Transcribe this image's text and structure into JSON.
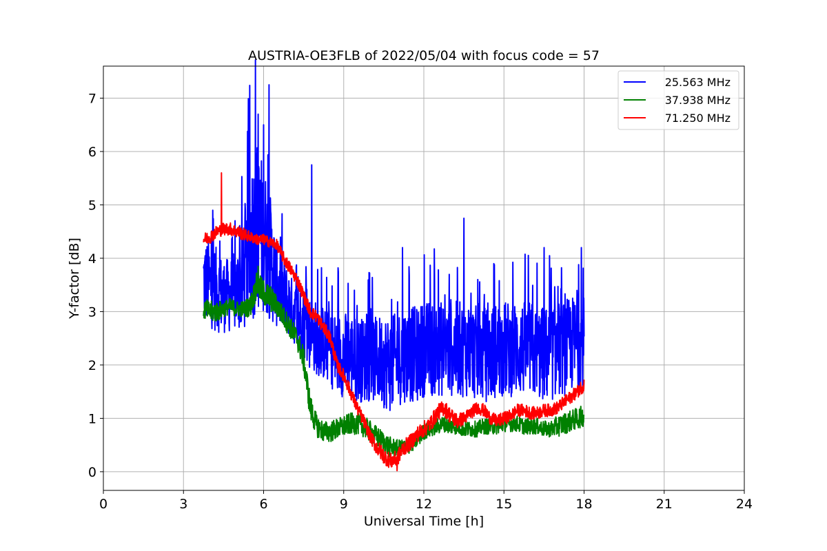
{
  "chart_data": {
    "type": "line",
    "title": "AUSTRIA-OE3FLB of 2022/05/04 with focus code = 57",
    "xlabel": "Universal Time [h]",
    "ylabel": "Y-factor [dB]",
    "xlim": [
      0,
      24
    ],
    "ylim": [
      -0.35,
      7.6
    ],
    "xticks": [
      0,
      3,
      6,
      9,
      12,
      15,
      18,
      21,
      24
    ],
    "yticks": [
      0,
      1,
      2,
      3,
      4,
      5,
      6,
      7
    ],
    "grid": true,
    "legend_position": "top-right",
    "series": [
      {
        "name": "25.563 MHz",
        "color": "#0000ff",
        "x": [
          3.75,
          4.0,
          4.25,
          4.5,
          4.75,
          5.0,
          5.25,
          5.5,
          5.75,
          6.0,
          6.25,
          6.5,
          6.75,
          7.0,
          7.25,
          7.5,
          7.75,
          8.0,
          8.25,
          8.5,
          8.75,
          9.0,
          9.25,
          9.5,
          9.75,
          10.0,
          10.25,
          10.5,
          10.75,
          11.0,
          11.25,
          11.5,
          11.75,
          12.0,
          12.25,
          12.5,
          12.75,
          13.0,
          13.25,
          13.5,
          13.75,
          14.0,
          14.25,
          14.5,
          14.75,
          15.0,
          15.25,
          15.5,
          15.75,
          16.0,
          16.25,
          16.5,
          16.75,
          17.0,
          17.25,
          17.5,
          17.75,
          18.0
        ],
        "mean": [
          3.6,
          3.5,
          3.4,
          3.3,
          3.3,
          3.4,
          3.6,
          4.3,
          4.6,
          4.4,
          4.0,
          3.5,
          3.3,
          3.1,
          2.9,
          2.8,
          2.6,
          2.5,
          2.4,
          2.3,
          2.2,
          2.2,
          2.2,
          2.1,
          2.1,
          2.1,
          2.1,
          2.1,
          2.0,
          2.1,
          2.2,
          2.2,
          2.2,
          2.3,
          2.3,
          2.3,
          2.3,
          2.3,
          2.3,
          2.3,
          2.3,
          2.2,
          2.2,
          2.2,
          2.3,
          2.3,
          2.3,
          2.3,
          2.3,
          2.3,
          2.2,
          2.2,
          2.2,
          2.3,
          2.3,
          2.4,
          2.4,
          2.4
        ],
        "amplitude": [
          0.8,
          0.8,
          0.8,
          0.7,
          0.7,
          0.8,
          1.0,
          1.6,
          1.6,
          1.4,
          1.2,
          0.8,
          0.7,
          0.6,
          0.6,
          0.7,
          0.7,
          0.7,
          0.7,
          0.7,
          0.8,
          0.8,
          0.8,
          0.8,
          0.8,
          0.8,
          0.8,
          0.9,
          0.9,
          0.9,
          0.9,
          0.9,
          0.9,
          0.9,
          0.9,
          0.9,
          0.9,
          0.9,
          0.9,
          0.9,
          0.9,
          0.9,
          0.9,
          0.9,
          0.9,
          0.9,
          0.9,
          0.9,
          0.9,
          0.9,
          0.9,
          0.9,
          0.9,
          0.9,
          0.9,
          0.9,
          0.9,
          0.9
        ],
        "peaks": [
          [
            4.1,
            4.9
          ],
          [
            5.8,
            6.7
          ],
          [
            6.0,
            6.5
          ],
          [
            6.2,
            7.25
          ],
          [
            7.8,
            5.75
          ],
          [
            11.2,
            4.2
          ],
          [
            13.5,
            4.75
          ],
          [
            16.5,
            4.2
          ],
          [
            17.9,
            4.2
          ]
        ]
      },
      {
        "name": "37.938 MHz",
        "color": "#008000",
        "x": [
          3.75,
          4.0,
          4.25,
          4.5,
          4.75,
          5.0,
          5.25,
          5.5,
          5.75,
          6.0,
          6.25,
          6.5,
          6.75,
          7.0,
          7.25,
          7.5,
          7.75,
          8.0,
          8.25,
          8.5,
          8.75,
          9.0,
          9.25,
          9.5,
          9.75,
          10.0,
          10.25,
          10.5,
          10.75,
          11.0,
          11.25,
          11.5,
          11.75,
          12.0,
          12.25,
          12.5,
          12.75,
          13.0,
          13.25,
          13.5,
          13.75,
          14.0,
          14.25,
          14.5,
          14.75,
          15.0,
          15.25,
          15.5,
          15.75,
          16.0,
          16.25,
          16.5,
          16.75,
          17.0,
          17.25,
          17.5,
          17.75,
          18.0
        ],
        "mean": [
          3.05,
          3.0,
          3.0,
          3.05,
          3.1,
          3.05,
          3.05,
          3.1,
          3.5,
          3.35,
          3.25,
          3.1,
          2.9,
          2.7,
          2.5,
          2.1,
          1.2,
          0.85,
          0.75,
          0.75,
          0.8,
          0.85,
          0.9,
          0.9,
          0.85,
          0.75,
          0.65,
          0.55,
          0.45,
          0.45,
          0.45,
          0.5,
          0.6,
          0.75,
          0.8,
          0.85,
          0.9,
          0.85,
          0.85,
          0.8,
          0.8,
          0.8,
          0.85,
          0.85,
          0.85,
          0.9,
          0.9,
          0.9,
          0.85,
          0.85,
          0.85,
          0.8,
          0.8,
          0.85,
          0.9,
          0.95,
          1.0,
          1.05
        ],
        "amplitude": [
          0.2,
          0.2,
          0.2,
          0.15,
          0.15,
          0.15,
          0.15,
          0.2,
          0.25,
          0.25,
          0.25,
          0.2,
          0.2,
          0.2,
          0.2,
          0.25,
          0.25,
          0.2,
          0.2,
          0.2,
          0.2,
          0.2,
          0.2,
          0.2,
          0.2,
          0.2,
          0.2,
          0.2,
          0.2,
          0.15,
          0.15,
          0.15,
          0.15,
          0.15,
          0.15,
          0.15,
          0.15,
          0.15,
          0.15,
          0.15,
          0.15,
          0.15,
          0.15,
          0.15,
          0.15,
          0.15,
          0.15,
          0.15,
          0.15,
          0.15,
          0.15,
          0.15,
          0.15,
          0.2,
          0.2,
          0.2,
          0.2,
          0.2
        ],
        "peaks": [
          [
            5.8,
            3.85
          ]
        ]
      },
      {
        "name": "71.250 MHz",
        "color": "#ff0000",
        "x": [
          3.75,
          4.0,
          4.25,
          4.5,
          4.75,
          5.0,
          5.25,
          5.5,
          5.75,
          6.0,
          6.25,
          6.5,
          6.75,
          7.0,
          7.25,
          7.5,
          7.75,
          8.0,
          8.25,
          8.5,
          8.75,
          9.0,
          9.25,
          9.5,
          9.75,
          10.0,
          10.25,
          10.5,
          10.75,
          11.0,
          11.25,
          11.5,
          11.75,
          12.0,
          12.25,
          12.5,
          12.75,
          13.0,
          13.25,
          13.5,
          13.75,
          14.0,
          14.25,
          14.5,
          14.75,
          15.0,
          15.25,
          15.5,
          15.75,
          16.0,
          16.25,
          16.5,
          16.75,
          17.0,
          17.25,
          17.5,
          17.75,
          18.0
        ],
        "mean": [
          4.35,
          4.4,
          4.5,
          4.55,
          4.55,
          4.5,
          4.45,
          4.4,
          4.35,
          4.35,
          4.3,
          4.25,
          4.0,
          3.8,
          3.6,
          3.3,
          3.0,
          2.9,
          2.7,
          2.5,
          2.0,
          1.8,
          1.5,
          1.2,
          0.95,
          0.65,
          0.45,
          0.3,
          0.2,
          0.25,
          0.45,
          0.55,
          0.7,
          0.8,
          0.9,
          1.1,
          1.2,
          1.05,
          0.95,
          1.0,
          1.1,
          1.2,
          1.15,
          1.0,
          0.95,
          1.0,
          1.05,
          1.15,
          1.15,
          1.1,
          1.1,
          1.15,
          1.15,
          1.2,
          1.3,
          1.4,
          1.5,
          1.65
        ],
        "amplitude": [
          0.12,
          0.12,
          0.12,
          0.12,
          0.12,
          0.12,
          0.12,
          0.1,
          0.1,
          0.1,
          0.1,
          0.1,
          0.12,
          0.12,
          0.12,
          0.12,
          0.12,
          0.12,
          0.12,
          0.12,
          0.12,
          0.12,
          0.12,
          0.12,
          0.12,
          0.12,
          0.15,
          0.15,
          0.15,
          0.15,
          0.15,
          0.15,
          0.15,
          0.15,
          0.15,
          0.15,
          0.15,
          0.15,
          0.15,
          0.12,
          0.12,
          0.12,
          0.12,
          0.12,
          0.12,
          0.12,
          0.12,
          0.12,
          0.12,
          0.12,
          0.12,
          0.12,
          0.12,
          0.12,
          0.12,
          0.12,
          0.12,
          0.15
        ],
        "peaks": [
          [
            4.42,
            5.6
          ],
          [
            11.0,
            0.0
          ]
        ]
      }
    ]
  }
}
